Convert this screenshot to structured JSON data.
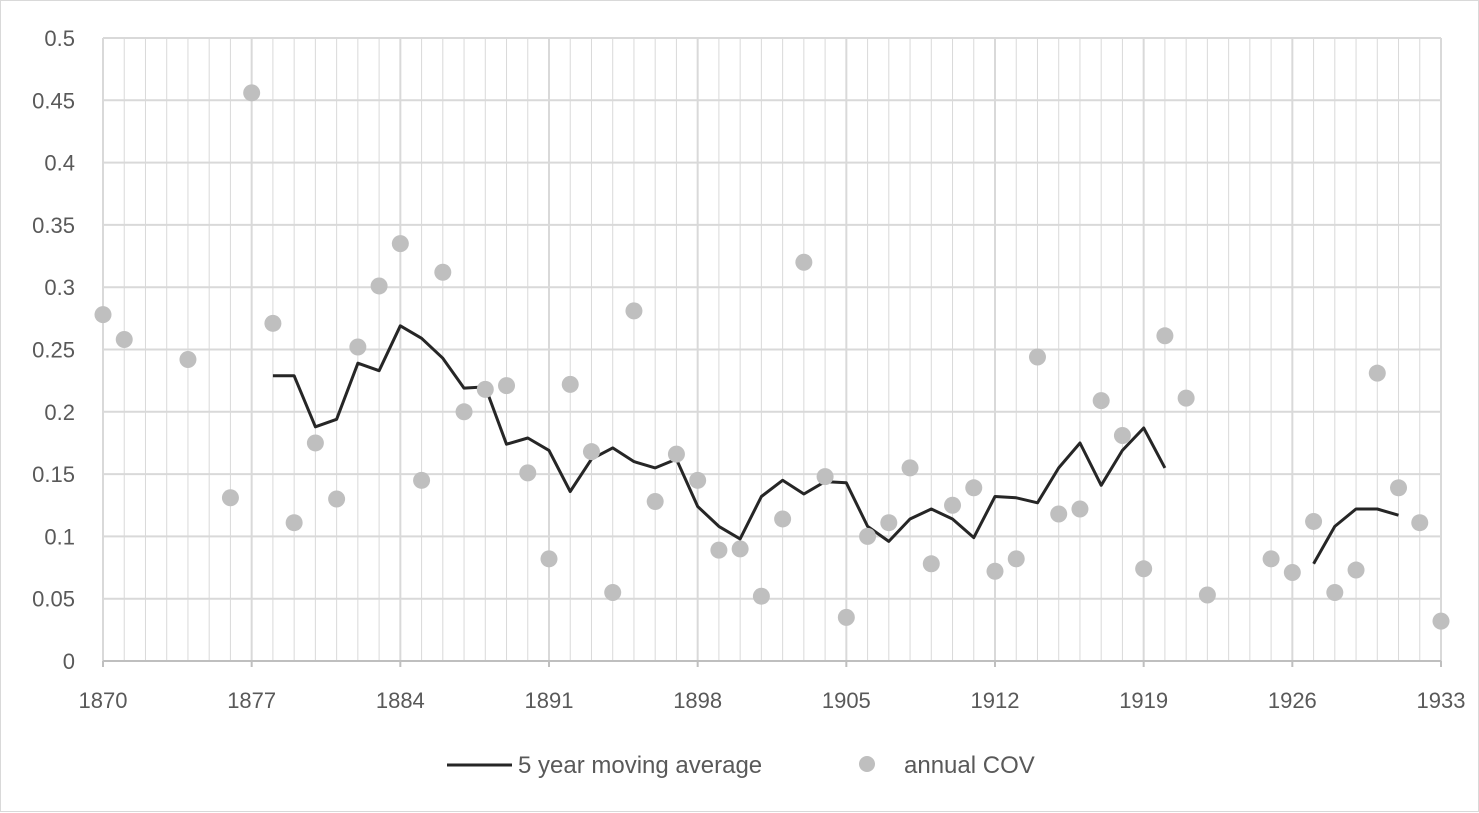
{
  "chart_data": {
    "type": "line",
    "title": "",
    "xlabel": "",
    "ylabel": "",
    "xlim": [
      1870,
      1933
    ],
    "ylim": [
      0,
      0.5
    ],
    "x_ticks": [
      1870,
      1877,
      1884,
      1891,
      1898,
      1905,
      1912,
      1919,
      1926,
      1933
    ],
    "y_ticks": [
      0,
      0.05,
      0.1,
      0.15,
      0.2,
      0.25,
      0.3,
      0.35,
      0.4,
      0.45,
      0.5
    ],
    "y_tick_labels": [
      "0",
      "0.05",
      "0.1",
      "0.15",
      "0.2",
      "0.25",
      "0.3",
      "0.35",
      "0.4",
      "0.45",
      "0.5"
    ],
    "grid": {
      "major": true,
      "minor_x_every": 1
    },
    "legend_position": "bottom",
    "colors": {
      "line": "#262626",
      "points": "#bfbfbf",
      "grid": "#d9d9d9",
      "axis": "#bfbfbf",
      "text": "#595959"
    },
    "series": [
      {
        "name": "5 year moving average",
        "kind": "line",
        "segments": [
          {
            "x": [
              1878,
              1879,
              1880,
              1881,
              1882,
              1883,
              1884,
              1885,
              1886,
              1887,
              1888,
              1889,
              1890,
              1891,
              1892,
              1893,
              1894,
              1895,
              1896,
              1897,
              1898,
              1899,
              1900,
              1901,
              1902,
              1903,
              1904,
              1905,
              1906,
              1907,
              1908,
              1909,
              1910,
              1911,
              1912,
              1913,
              1914,
              1915,
              1916,
              1917,
              1918,
              1919,
              1920
            ],
            "y": [
              0.229,
              0.229,
              0.188,
              0.194,
              0.239,
              0.233,
              0.269,
              0.259,
              0.243,
              0.219,
              0.22,
              0.174,
              0.179,
              0.169,
              0.136,
              0.162,
              0.171,
              0.16,
              0.155,
              0.162,
              0.124,
              0.108,
              0.098,
              0.132,
              0.145,
              0.134,
              0.144,
              0.143,
              0.108,
              0.096,
              0.114,
              0.122,
              0.114,
              0.099,
              0.132,
              0.131,
              0.127,
              0.155,
              0.175,
              0.141,
              0.169,
              0.187,
              0.155
            ]
          },
          {
            "x": [
              1927,
              1928,
              1929,
              1930,
              1931
            ],
            "y": [
              0.078,
              0.108,
              0.122,
              0.122,
              0.117
            ]
          }
        ]
      },
      {
        "name": "annual COV",
        "kind": "scatter",
        "points": [
          [
            1870,
            0.278
          ],
          [
            1871,
            0.258
          ],
          [
            1874,
            0.242
          ],
          [
            1876,
            0.131
          ],
          [
            1877,
            0.456
          ],
          [
            1878,
            0.271
          ],
          [
            1879,
            0.111
          ],
          [
            1880,
            0.175
          ],
          [
            1881,
            0.13
          ],
          [
            1882,
            0.252
          ],
          [
            1883,
            0.301
          ],
          [
            1884,
            0.335
          ],
          [
            1885,
            0.145
          ],
          [
            1886,
            0.312
          ],
          [
            1887,
            0.2
          ],
          [
            1888,
            0.218
          ],
          [
            1889,
            0.221
          ],
          [
            1890,
            0.151
          ],
          [
            1891,
            0.082
          ],
          [
            1892,
            0.222
          ],
          [
            1893,
            0.168
          ],
          [
            1894,
            0.055
          ],
          [
            1895,
            0.281
          ],
          [
            1896,
            0.128
          ],
          [
            1897,
            0.166
          ],
          [
            1898,
            0.145
          ],
          [
            1899,
            0.089
          ],
          [
            1900,
            0.09
          ],
          [
            1901,
            0.052
          ],
          [
            1902,
            0.114
          ],
          [
            1903,
            0.32
          ],
          [
            1904,
            0.148
          ],
          [
            1905,
            0.035
          ],
          [
            1906,
            0.1
          ],
          [
            1907,
            0.111
          ],
          [
            1908,
            0.155
          ],
          [
            1909,
            0.078
          ],
          [
            1910,
            0.125
          ],
          [
            1911,
            0.139
          ],
          [
            1912,
            0.072
          ],
          [
            1913,
            0.082
          ],
          [
            1914,
            0.244
          ],
          [
            1915,
            0.118
          ],
          [
            1916,
            0.122
          ],
          [
            1917,
            0.209
          ],
          [
            1918,
            0.181
          ],
          [
            1919,
            0.074
          ],
          [
            1920,
            0.261
          ],
          [
            1921,
            0.211
          ],
          [
            1922,
            0.053
          ],
          [
            1925,
            0.082
          ],
          [
            1926,
            0.071
          ],
          [
            1927,
            0.112
          ],
          [
            1928,
            0.055
          ],
          [
            1929,
            0.073
          ],
          [
            1930,
            0.231
          ],
          [
            1931,
            0.139
          ],
          [
            1932,
            0.111
          ],
          [
            1933,
            0.032
          ]
        ]
      }
    ]
  }
}
